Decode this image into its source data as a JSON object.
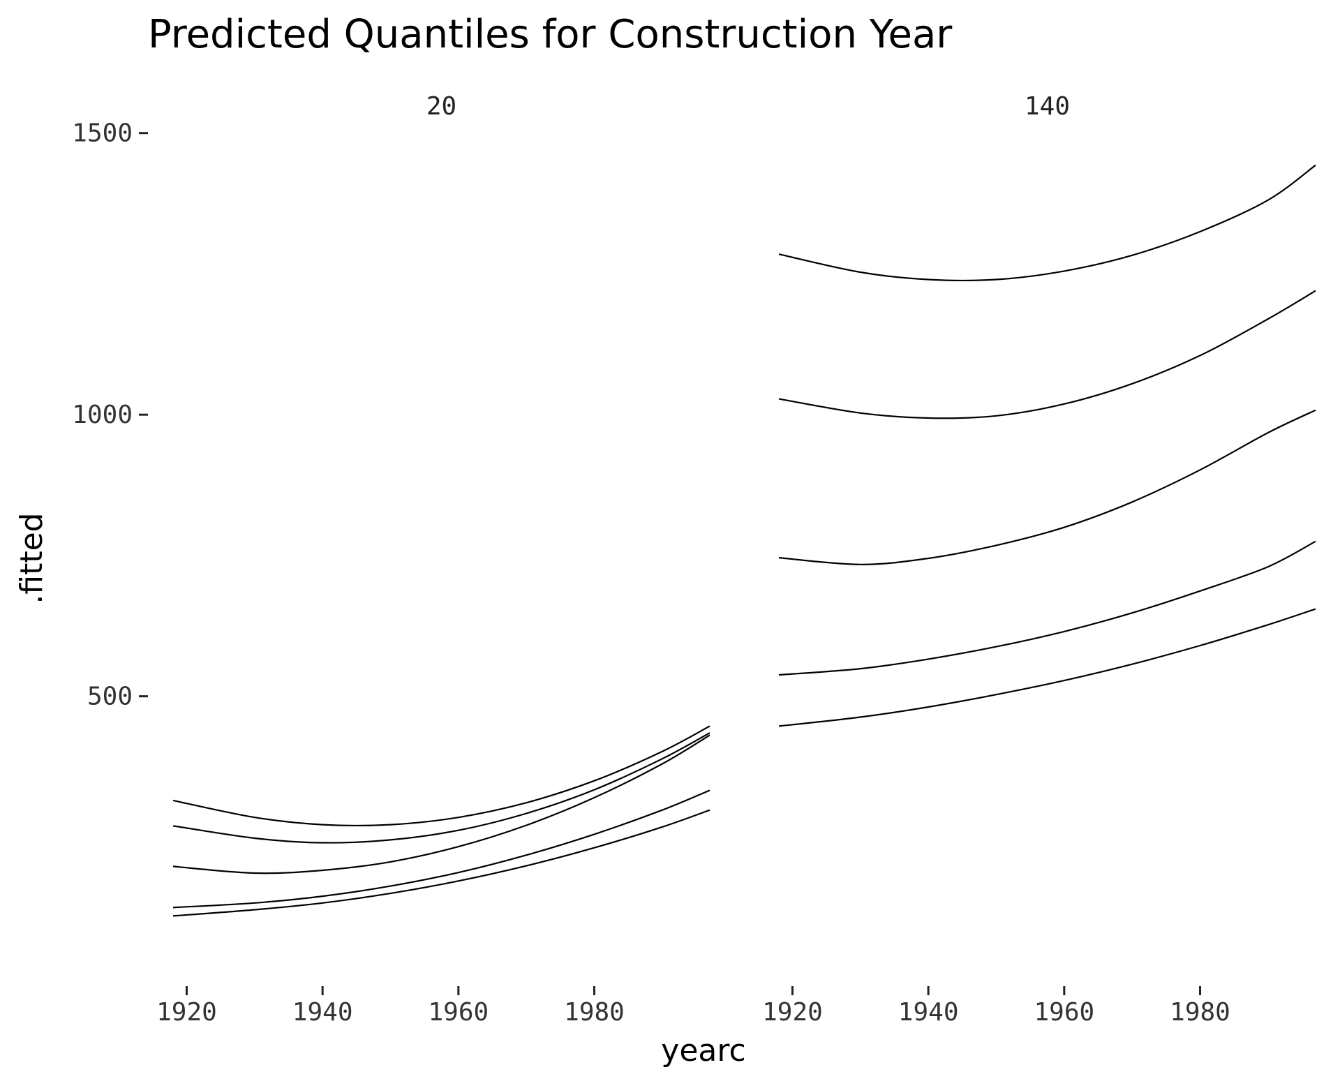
{
  "chart_data": {
    "type": "line",
    "title": "Predicted Quantiles for Construction Year",
    "xlabel": "yearc",
    "ylabel": ".fitted",
    "ylim": [
      20,
      1600
    ],
    "y_ticks": [
      500,
      1000,
      1500
    ],
    "x_ticks": [
      1920,
      1940,
      1960,
      1980
    ],
    "grid": false,
    "panels": [
      {
        "label": "20",
        "xlim": [
          1918,
          1997
        ],
        "series": [
          {
            "x": [
              1918,
              1930,
              1940,
              1950,
              1960,
              1970,
              1980,
              1990,
              1997
            ],
            "y": [
              110,
              121,
              133,
              150,
              172,
              199,
              231,
              268,
              298
            ]
          },
          {
            "x": [
              1918,
              1930,
              1940,
              1950,
              1960,
              1970,
              1980,
              1990,
              1997
            ],
            "y": [
              125,
              133,
              145,
              163,
              187,
              218,
              255,
              298,
              333
            ]
          },
          {
            "x": [
              1918,
              1930,
              1940,
              1950,
              1960,
              1970,
              1980,
              1990,
              1997
            ],
            "y": [
              198,
              186,
              191,
              206,
              233,
              271,
              320,
              380,
              431
            ]
          },
          {
            "x": [
              1918,
              1930,
              1940,
              1950,
              1960,
              1970,
              1980,
              1990,
              1997
            ],
            "y": [
              270,
              248,
              240,
              245,
              262,
              292,
              334,
              389,
              435
            ]
          },
          {
            "x": [
              1918,
              1930,
              1940,
              1950,
              1960,
              1970,
              1980,
              1990,
              1997
            ],
            "y": [
              315,
              285,
              272,
              272,
              285,
              311,
              350,
              402,
              447
            ]
          }
        ]
      },
      {
        "label": "140",
        "xlim": [
          1918,
          1997
        ],
        "series": [
          {
            "x": [
              1918,
              1930,
              1940,
              1950,
              1960,
              1970,
              1980,
              1990,
              1997
            ],
            "y": [
              447,
              463,
              481,
              503,
              528,
              557,
              590,
              627,
              655
            ]
          },
          {
            "x": [
              1918,
              1930,
              1940,
              1950,
              1960,
              1970,
              1980,
              1990,
              1997
            ],
            "y": [
              538,
              549,
              566,
              588,
              615,
              648,
              687,
              730,
              775
            ]
          },
          {
            "x": [
              1918,
              1930,
              1940,
              1950,
              1960,
              1970,
              1980,
              1990,
              1997
            ],
            "y": [
              746,
              734,
              745,
              768,
              800,
              845,
              902,
              968,
              1008
            ]
          },
          {
            "x": [
              1918,
              1930,
              1940,
              1950,
              1960,
              1970,
              1980,
              1990,
              1997
            ],
            "y": [
              1028,
              1003,
              994,
              998,
              1019,
              1055,
              1105,
              1170,
              1220
            ]
          },
          {
            "x": [
              1918,
              1930,
              1940,
              1950,
              1960,
              1970,
              1980,
              1990,
              1997
            ],
            "y": [
              1285,
              1253,
              1240,
              1240,
              1255,
              1283,
              1325,
              1381,
              1443
            ]
          }
        ]
      }
    ]
  }
}
